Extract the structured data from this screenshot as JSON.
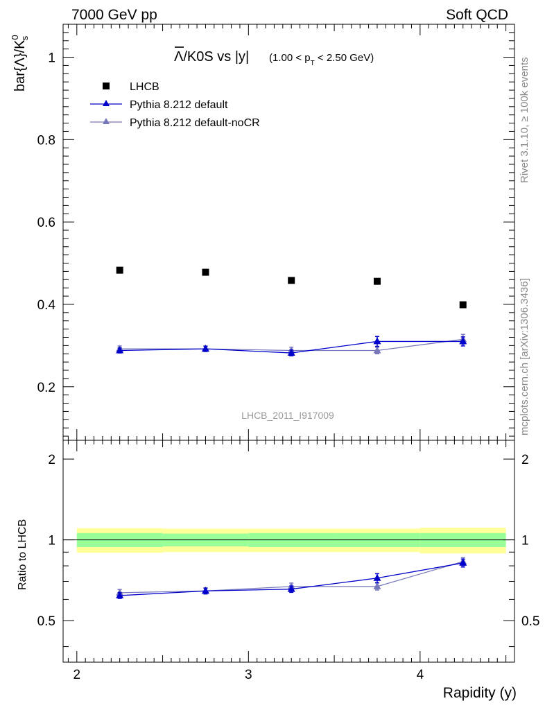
{
  "header": {
    "left": "7000 GeV pp",
    "right": "Soft QCD"
  },
  "side_labels": {
    "rivet": "Rivet 3.1.10, ≥ 100k events",
    "mcplots": "mcplots.cern.ch [arXiv:1306.3436]"
  },
  "chart_data": [
    {
      "type": "scatter",
      "panel": "main",
      "title": {
        "main": "Λ/K0S vs |y|",
        "cut": "(1.00 < p",
        "cut_sub": "T",
        "cut_end": " < 2.50 GeV)"
      },
      "ylabel": "bar{Λ}/K",
      "ylabel_sup": "0",
      "ylabel_sub": "s",
      "watermark": "LHCB_2011_I917009",
      "xlim": [
        1.92,
        4.55
      ],
      "ylim": [
        0.07,
        1.08
      ],
      "y_major_ticks": [
        0.2,
        0.4,
        0.6,
        0.8,
        1
      ],
      "y_tick_labels": [
        "0.2",
        "0.4",
        "0.6",
        "0.8",
        "1"
      ],
      "grid": false,
      "legend_position": "top-left",
      "series": [
        {
          "name": "LHCB",
          "style": "square",
          "color": "#000000",
          "x": [
            2.25,
            2.75,
            3.25,
            3.75,
            4.25
          ],
          "y": [
            0.483,
            0.478,
            0.458,
            0.456,
            0.399
          ],
          "yerr": [
            0.005,
            0.005,
            0.005,
            0.005,
            0.005
          ]
        },
        {
          "name": "Pythia 8.212 default",
          "style": "triangle-line",
          "color": "#0000cc",
          "x": [
            2.25,
            2.75,
            3.25,
            3.75,
            4.25
          ],
          "y": [
            0.288,
            0.292,
            0.282,
            0.31,
            0.31
          ],
          "yerr": [
            0.006,
            0.006,
            0.007,
            0.012,
            0.011
          ]
        },
        {
          "name": "Pythia 8.212 default-noCR",
          "style": "triangle-line",
          "color": "#7777bb",
          "x": [
            2.25,
            2.75,
            3.25,
            3.75,
            4.25
          ],
          "y": [
            0.292,
            0.292,
            0.288,
            0.288,
            0.315
          ],
          "yerr": [
            0.007,
            0.007,
            0.008,
            0.008,
            0.012
          ]
        }
      ]
    },
    {
      "type": "scatter",
      "panel": "ratio",
      "ylabel": "Ratio to LHCB",
      "xlabel": "Rapidity (y)",
      "xlim": [
        1.92,
        4.55
      ],
      "ylim": [
        0.35,
        2.35
      ],
      "x_major_ticks": [
        2,
        3,
        4
      ],
      "x_tick_labels": [
        "2",
        "3",
        "4"
      ],
      "y_major_ticks": [
        0.5,
        1,
        2
      ],
      "y_tick_labels": [
        "0.5",
        "1",
        "2"
      ],
      "reference_line": 1,
      "bands": {
        "bins": [
          {
            "x0": 2.0,
            "x1": 2.5
          },
          {
            "x0": 2.5,
            "x1": 3.0
          },
          {
            "x0": 3.0,
            "x1": 3.5
          },
          {
            "x0": 3.5,
            "x1": 4.0
          },
          {
            "x0": 4.0,
            "x1": 4.5
          }
        ],
        "stat": [
          0.06,
          0.055,
          0.06,
          0.06,
          0.06
        ],
        "total": [
          0.105,
          0.1,
          0.1,
          0.1,
          0.11
        ],
        "stat_color": "#99ff99",
        "total_color": "#ffff99"
      },
      "series": [
        {
          "name": "Pythia 8.212 default",
          "color": "#0000cc",
          "x": [
            2.25,
            2.75,
            3.25,
            3.75,
            4.25
          ],
          "y": [
            0.62,
            0.645,
            0.655,
            0.72,
            0.82
          ],
          "yerr": [
            0.015,
            0.015,
            0.018,
            0.028,
            0.028
          ]
        },
        {
          "name": "Pythia 8.212 default-noCR",
          "color": "#7777bb",
          "x": [
            2.25,
            2.75,
            3.25,
            3.75,
            4.25
          ],
          "y": [
            0.635,
            0.645,
            0.67,
            0.67,
            0.83
          ],
          "yerr": [
            0.018,
            0.018,
            0.02,
            0.02,
            0.028
          ]
        }
      ]
    }
  ]
}
